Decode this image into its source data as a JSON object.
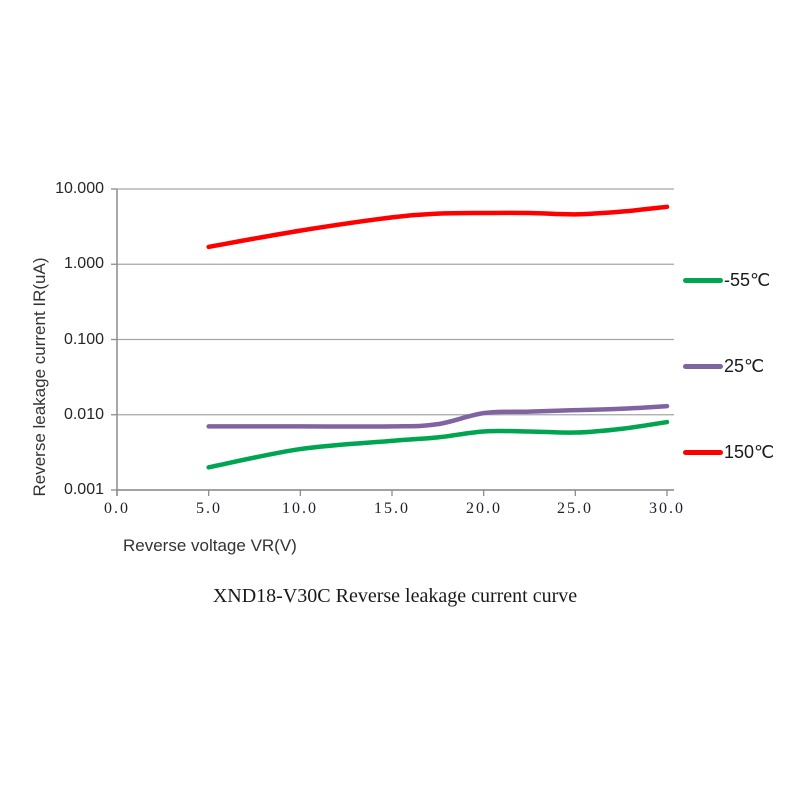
{
  "colors": {
    "grid": "#a6a6a6",
    "axis": "#8c8c8c",
    "text": "#262626"
  },
  "chart_data": {
    "type": "line",
    "title": "XND18-V30C Reverse leakage current curve",
    "x_axis": {
      "label": "Reverse voltage VR(V)",
      "range": [
        0,
        30
      ],
      "ticks": [
        0,
        5,
        10,
        15,
        20,
        25,
        30
      ],
      "tick_labels": [
        "0.0",
        "5.0",
        "10.0",
        "15.0",
        "20.0",
        "25.0",
        "30.0"
      ]
    },
    "y_axis": {
      "label": "Reverse leakage current IR(uA)",
      "scale": "log",
      "range": [
        0.001,
        10
      ],
      "ticks": [
        10,
        1,
        0.1,
        0.01,
        0.001
      ],
      "tick_labels": [
        "10.000",
        "1.000",
        "0.100",
        "0.010",
        "0.001"
      ]
    },
    "grid": "horizontal",
    "legend": {
      "position": "right",
      "entries": [
        {
          "label": "-55℃",
          "color": "#00A551"
        },
        {
          "label": "25℃",
          "color": "#8064A2"
        },
        {
          "label": "150℃",
          "color": "#FF0000"
        }
      ]
    },
    "series": [
      {
        "name": "-55℃",
        "color": "#00A551",
        "points": [
          [
            5,
            0.002
          ],
          [
            10,
            0.0035
          ],
          [
            15,
            0.0045
          ],
          [
            17.5,
            0.005
          ],
          [
            20,
            0.006
          ],
          [
            22.5,
            0.006
          ],
          [
            25,
            0.0058
          ],
          [
            27.5,
            0.0065
          ],
          [
            30,
            0.008
          ]
        ]
      },
      {
        "name": "25℃",
        "color": "#8064A2",
        "points": [
          [
            5,
            0.007
          ],
          [
            10,
            0.007
          ],
          [
            15,
            0.007
          ],
          [
            17.5,
            0.0075
          ],
          [
            20,
            0.0105
          ],
          [
            22.5,
            0.011
          ],
          [
            25,
            0.0115
          ],
          [
            27.5,
            0.012
          ],
          [
            30,
            0.013
          ]
        ]
      },
      {
        "name": "150℃",
        "color": "#FF0000",
        "points": [
          [
            5,
            1.7
          ],
          [
            10,
            2.8
          ],
          [
            15,
            4.2
          ],
          [
            17.5,
            4.7
          ],
          [
            20,
            4.8
          ],
          [
            22.5,
            4.8
          ],
          [
            25,
            4.6
          ],
          [
            27.5,
            5.0
          ],
          [
            30,
            5.8
          ]
        ]
      }
    ]
  }
}
